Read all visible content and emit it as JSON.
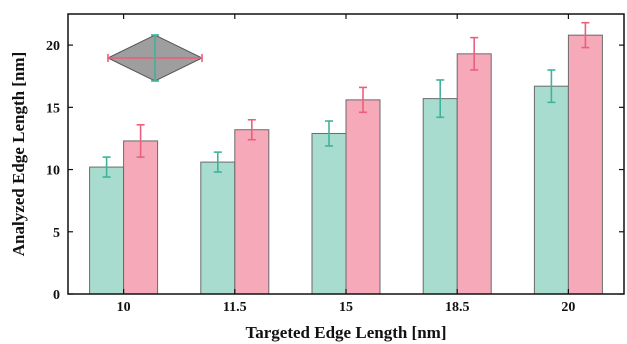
{
  "chart_data": {
    "type": "bar",
    "title": "",
    "xlabel": "Targeted Edge Length [nm]",
    "ylabel": "Analyzed Edge Length [nm]",
    "categories": [
      "10",
      "11.5",
      "15",
      "18.5",
      "20"
    ],
    "ylim": [
      0,
      22.5
    ],
    "yticks": [
      "0",
      "5",
      "10",
      "15",
      "20"
    ],
    "grid": false,
    "legend": "none",
    "series": [
      {
        "color": "#a8dccf",
        "error_color": "#3fb39a",
        "values": [
          10.2,
          10.6,
          12.9,
          15.7,
          16.7
        ],
        "errors": [
          0.8,
          0.8,
          1.0,
          1.5,
          1.3
        ]
      },
      {
        "color": "#f6aab9",
        "error_color": "#ec5f7c",
        "values": [
          12.3,
          13.2,
          15.6,
          19.3,
          20.8
        ],
        "errors": [
          1.3,
          0.8,
          1.0,
          1.3,
          1.0
        ]
      }
    ],
    "inset": {
      "shape": "rhombus-icon",
      "fill": "#9e9e9e",
      "vertical_line_color": "#3fb39a",
      "horizontal_line_color": "#ec5f7c"
    }
  }
}
